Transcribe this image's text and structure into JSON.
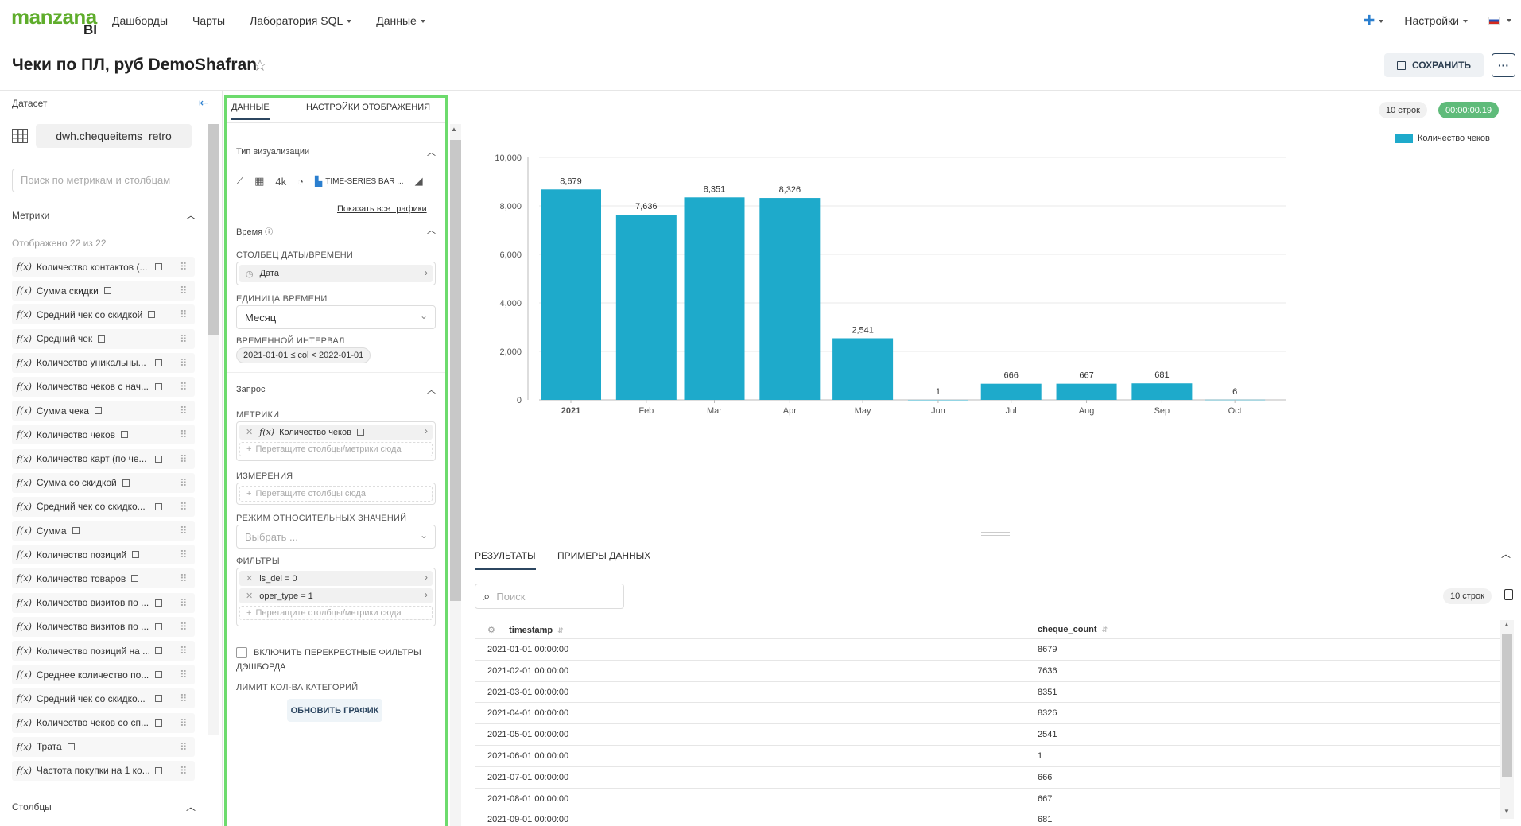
{
  "app": {
    "logo_text": "manzana",
    "logo_sub": "BI"
  },
  "nav": {
    "items": [
      {
        "label": "Дашборды",
        "dropdown": false
      },
      {
        "label": "Чарты",
        "dropdown": false
      },
      {
        "label": "Лаборатория SQL",
        "dropdown": true
      },
      {
        "label": "Данные",
        "dropdown": true
      }
    ],
    "plus_icon": "plus-icon",
    "settings_label": "Настройки",
    "language_flag": "ru-flag"
  },
  "header": {
    "title": "Чеки по ПЛ, руб DemoShafran",
    "save_label": "СОХРАНИТЬ",
    "more_label": "···"
  },
  "dataset_panel": {
    "label": "Датасет",
    "dataset_name": "dwh.chequeitems_retro",
    "search_placeholder": "Поиск по метрикам и столбцам",
    "metrics_title": "Метрики",
    "metrics_count_text": "Отображено 22 из 22",
    "columns_title": "Столбцы",
    "metrics": [
      {
        "label": "Количество контактов (...",
        "icon_inline": false
      },
      {
        "label": "Сумма скидки",
        "icon_inline": true
      },
      {
        "label": "Средний чек со скидкой",
        "icon_inline": true
      },
      {
        "label": "Средний чек",
        "icon_inline": true
      },
      {
        "label": "Количество уникальны...",
        "icon_inline": false
      },
      {
        "label": "Количество чеков с нач...",
        "icon_inline": false
      },
      {
        "label": "Сумма чека",
        "icon_inline": true
      },
      {
        "label": "Количество чеков",
        "icon_inline": true
      },
      {
        "label": "Количество карт (по че...",
        "icon_inline": false
      },
      {
        "label": "Сумма со скидкой",
        "icon_inline": true
      },
      {
        "label": "Средний чек со скидко...",
        "icon_inline": false
      },
      {
        "label": "Сумма",
        "icon_inline": true
      },
      {
        "label": "Количество позиций",
        "icon_inline": true
      },
      {
        "label": "Количество товаров",
        "icon_inline": true
      },
      {
        "label": "Количество визитов по ...",
        "icon_inline": false
      },
      {
        "label": "Количество визитов по ...",
        "icon_inline": false
      },
      {
        "label": "Количество позиций на ...",
        "icon_inline": false
      },
      {
        "label": "Среднее количество по...",
        "icon_inline": false
      },
      {
        "label": "Средний чек со скидко...",
        "icon_inline": false
      },
      {
        "label": "Количество чеков со сп...",
        "icon_inline": false
      },
      {
        "label": "Трата",
        "icon_inline": true
      },
      {
        "label": "Частота покупки на 1 ко...",
        "icon_inline": false
      }
    ]
  },
  "config_panel": {
    "tab_data": "ДАННЫЕ",
    "tab_display": "НАСТРОЙКИ ОТОБРАЖЕНИЯ",
    "viz_type_title": "Тип визуализации",
    "viz_big_number": "4k",
    "viz_selected": "TIME-SERIES BAR ...",
    "show_all_charts": "Показать все графики",
    "time_title": "Время",
    "datetime_col_label": "СТОЛБЕЦ ДАТЫ/ВРЕМЕНИ",
    "datetime_col_value": "Дата",
    "time_unit_label": "ЕДИНИЦА ВРЕМЕНИ",
    "time_unit_value": "Месяц",
    "time_range_label": "ВРЕМЕННОЙ ИНТЕРВАЛ",
    "time_range_value": "2021-01-01 ≤ col < 2022-01-01",
    "query_title": "Запрос",
    "metrics_label": "МЕТРИКИ",
    "metric_value": "Количество чеков",
    "drop_metrics_placeholder": "Перетащите столбцы/метрики сюда",
    "dimensions_label": "ИЗМЕРЕНИЯ",
    "drop_columns_placeholder": "Перетащите столбцы сюда",
    "relative_mode_label": "РЕЖИМ ОТНОСИТЕЛЬНЫХ ЗНАЧЕНИЙ",
    "relative_mode_placeholder": "Выбрать ...",
    "filters_label": "ФИЛЬТРЫ",
    "filters": [
      "is_del = 0",
      "oper_type = 1"
    ],
    "cross_filters_label": "ВКЛЮЧИТЬ ПЕРЕКРЕСТНЫЕ ФИЛЬТРЫ ДЭШБОРДА",
    "category_limit_label": "ЛИМИТ КОЛ-ВА КАТЕГОРИЙ",
    "update_button": "ОБНОВИТЬ ГРАФИК"
  },
  "chart_meta": {
    "rows_badge": "10 строк",
    "time_badge": "00:00:00.19",
    "bar_color": "#1eaacb",
    "time_badge_color": "#5fbb7a"
  },
  "chart_data": {
    "type": "bar",
    "categories": [
      "2021",
      "Feb",
      "Mar",
      "Apr",
      "May",
      "Jun",
      "Jul",
      "Aug",
      "Sep",
      "Oct"
    ],
    "series": [
      {
        "name": "Количество чеков",
        "values": [
          8679,
          7636,
          8351,
          8326,
          2541,
          1,
          666,
          667,
          681,
          6
        ]
      }
    ],
    "data_labels": [
      "8,679",
      "7,636",
      "8,351",
      "8,326",
      "2,541",
      "1",
      "666",
      "667",
      "681",
      "6"
    ],
    "y_ticks": [
      "0",
      "2,000",
      "4,000",
      "6,000",
      "8,000",
      "10,000"
    ],
    "y_tick_values": [
      0,
      2000,
      4000,
      6000,
      8000,
      10000
    ],
    "ylim": [
      0,
      10000
    ],
    "grid": true,
    "legend_position": "top-right"
  },
  "results": {
    "tab_results": "РЕЗУЛЬТАТЫ",
    "tab_samples": "ПРИМЕРЫ ДАННЫХ",
    "search_placeholder": "Поиск",
    "rows_badge": "10 строк",
    "columns": [
      "__timestamp",
      "cheque_count"
    ],
    "rows": [
      [
        "2021-01-01 00:00:00",
        "8679"
      ],
      [
        "2021-02-01 00:00:00",
        "7636"
      ],
      [
        "2021-03-01 00:00:00",
        "8351"
      ],
      [
        "2021-04-01 00:00:00",
        "8326"
      ],
      [
        "2021-05-01 00:00:00",
        "2541"
      ],
      [
        "2021-06-01 00:00:00",
        "1"
      ],
      [
        "2021-07-01 00:00:00",
        "666"
      ],
      [
        "2021-08-01 00:00:00",
        "667"
      ],
      [
        "2021-09-01 00:00:00",
        "681"
      ]
    ]
  }
}
